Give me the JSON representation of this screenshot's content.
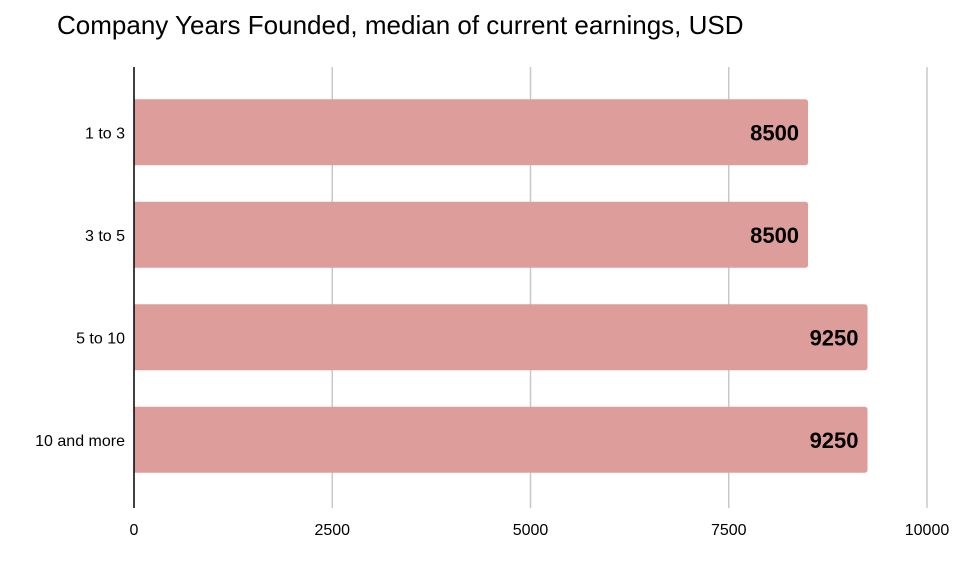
{
  "chart_data": {
    "type": "bar",
    "orientation": "horizontal",
    "title": "Company Years Founded, median of current earnings, USD",
    "xlabel": "",
    "ylabel": "",
    "categories": [
      "1 to 3",
      "3 to 5",
      "5 to 10",
      "10 and more"
    ],
    "values": [
      8500,
      8500,
      9250,
      9250
    ],
    "data_labels": [
      "8500",
      "8500",
      "9250",
      "9250"
    ],
    "xlim": [
      0,
      10000
    ],
    "xticks": [
      0,
      2500,
      5000,
      7500,
      10000
    ],
    "xtick_labels": [
      "0",
      "2500",
      "5000",
      "7500",
      "10000"
    ],
    "grid": true,
    "legend": "none",
    "colors": {
      "bar": "#dd9d9a",
      "grid": "#c8c8c8",
      "axis": "#000000",
      "text": "#000000"
    }
  }
}
